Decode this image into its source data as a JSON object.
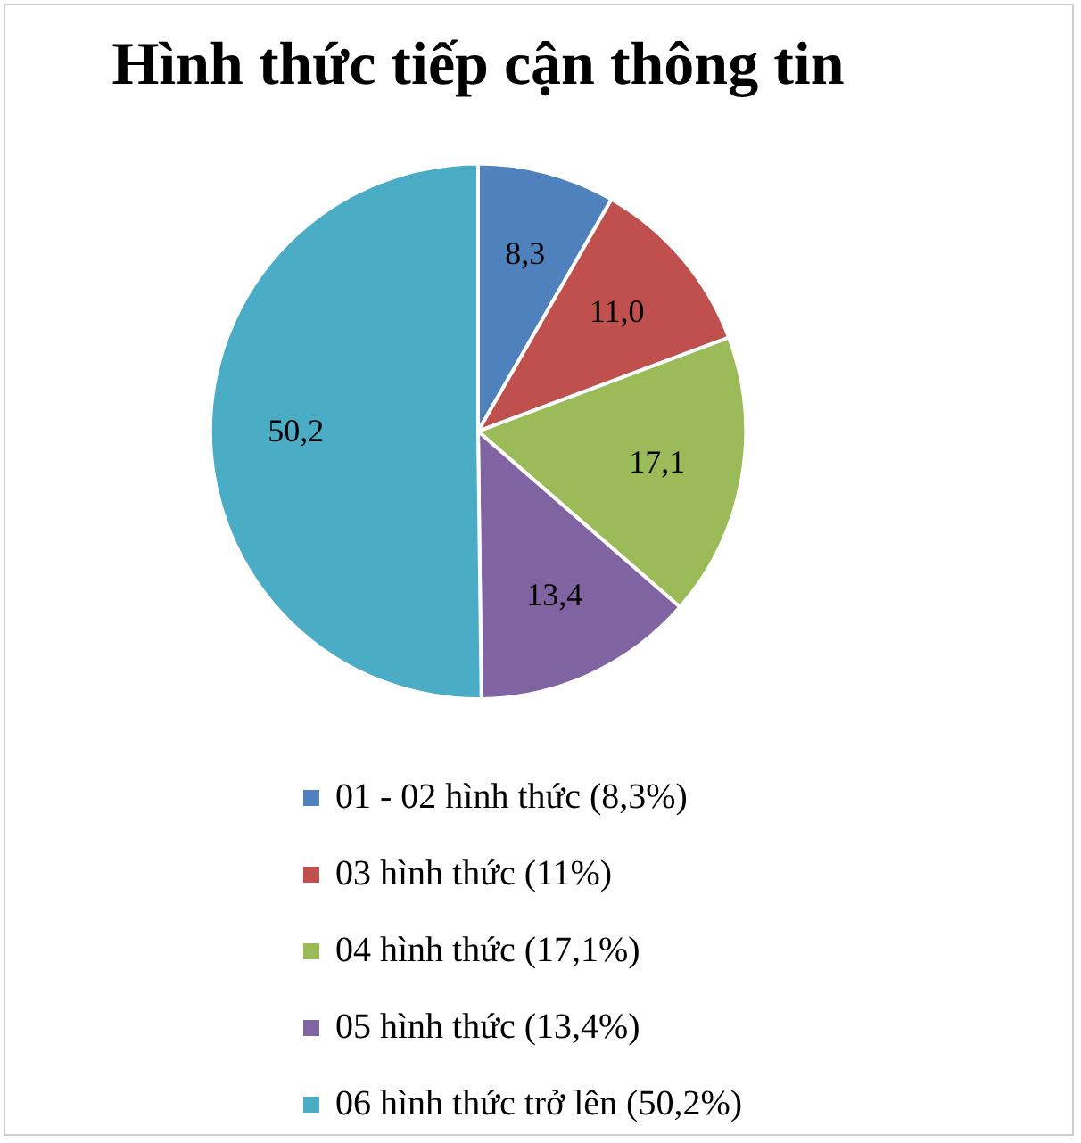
{
  "chart_data": {
    "type": "pie",
    "title": "Hình thức tiếp cận thông tin",
    "categories": [
      "01 - 02 hình thức (8,3%)",
      "03 hình thức (11%)",
      "04 hình thức (17,1%)",
      "05 hình thức (13,4%)",
      "06 hình thức trở lên (50,2%)"
    ],
    "values": [
      8.3,
      11.0,
      17.1,
      13.4,
      50.2
    ],
    "value_labels": [
      "8,3",
      "11,0",
      "17,1",
      "13,4",
      "50,2"
    ],
    "colors": [
      "#4f81bd",
      "#c0504d",
      "#9bbb59",
      "#8064a2",
      "#4bacc6"
    ],
    "legend": "bottom"
  }
}
